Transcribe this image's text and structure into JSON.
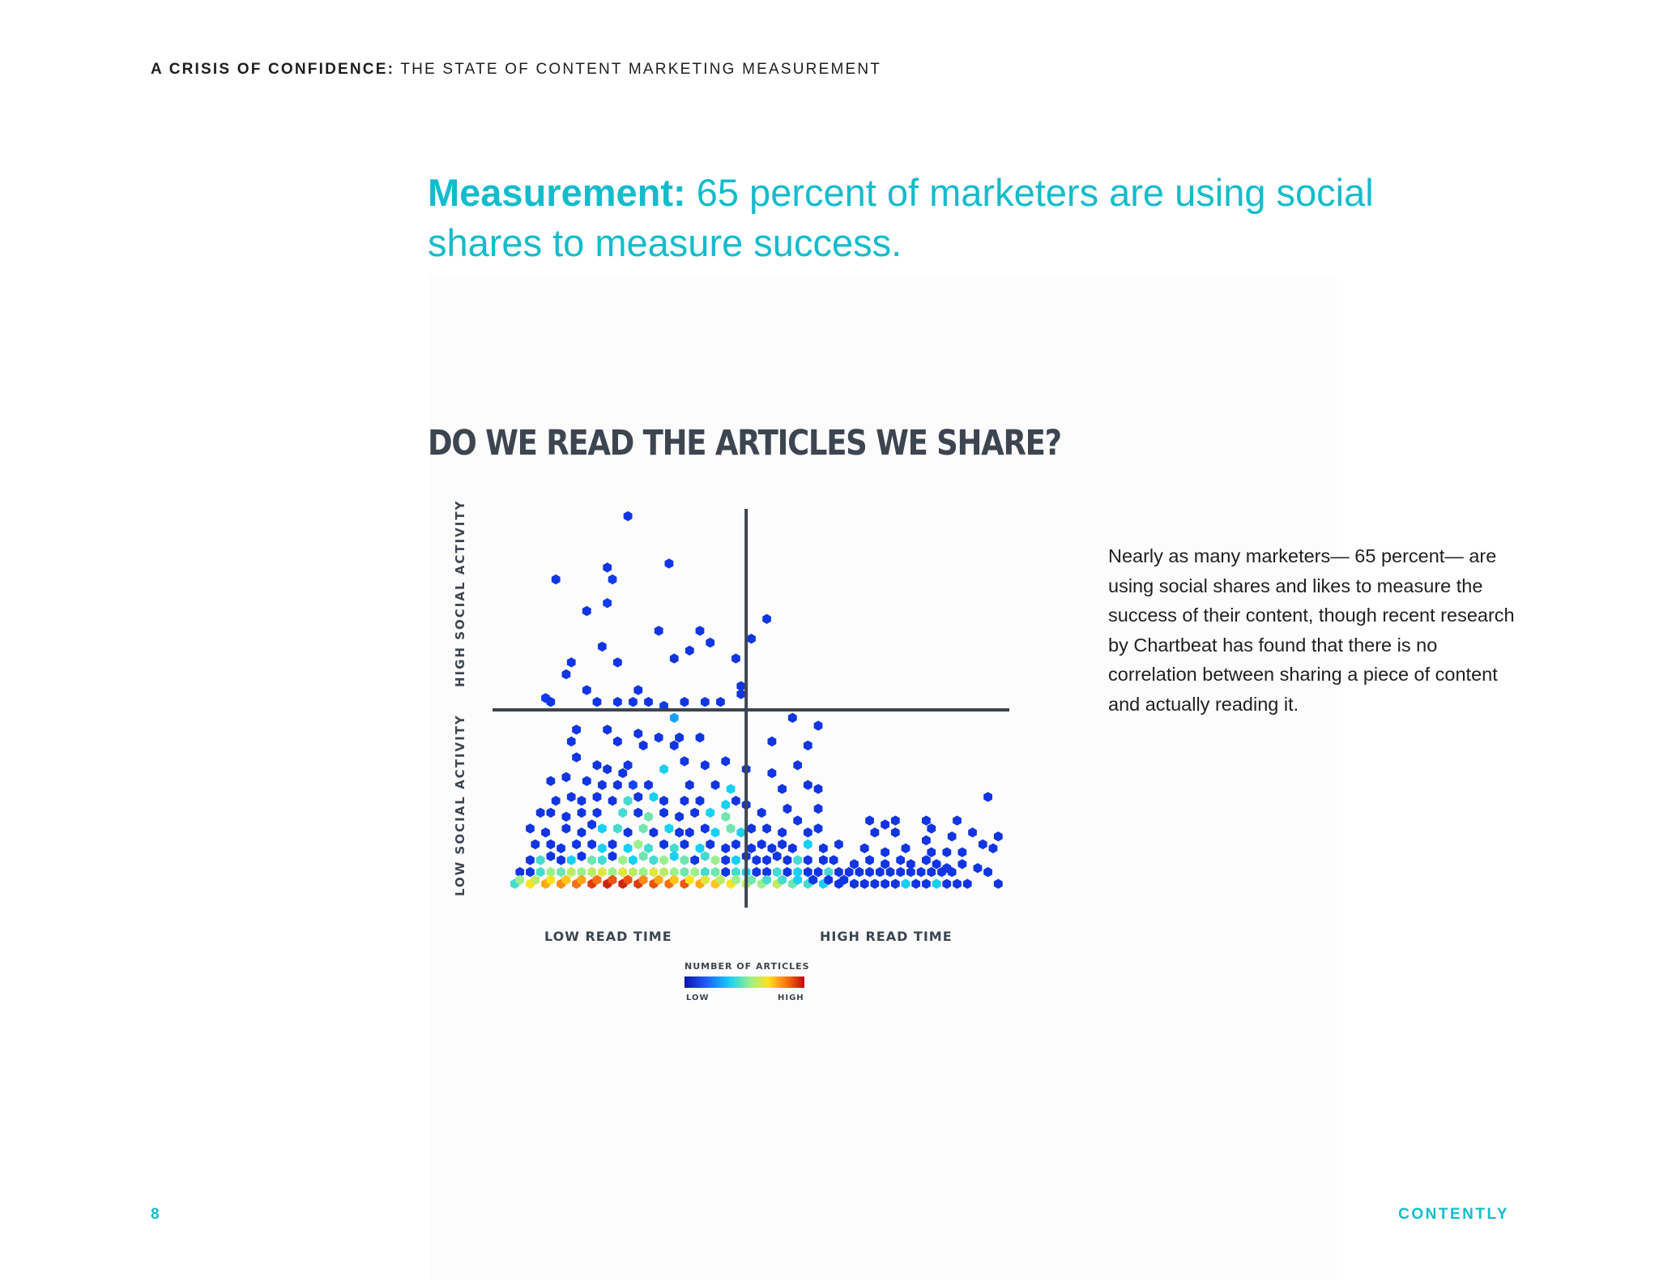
{
  "header": {
    "bold": "A CRISIS OF CONFIDENCE:",
    "rest": "THE STATE OF CONTENT MARKETING MEASUREMENT"
  },
  "headline": {
    "bold": "Measurement:",
    "rest": "65 percent of marketers are using social shares to measure success."
  },
  "body": {
    "paragraph": "Nearly as many marketers— 65 percent— are using social shares and likes to measure the success of their content, though recent research by Chartbeat has found that there is no correlation between sharing a piece of content and actually reading it."
  },
  "footer": {
    "page_number": "8",
    "brand": "CONTENTLY"
  },
  "colors": {
    "accent": "#13bccc",
    "chart_text": "#3d4550",
    "scale_low": "#0a14a8",
    "scale_mid": "#18d0f2",
    "scale_high": "#c10808"
  },
  "chart_data": {
    "type": "scatter",
    "subtype": "hexbin density",
    "title": "DO WE READ THE ARTICLES WE SHARE?",
    "xlabel_low": "LOW READ TIME",
    "xlabel_high": "HIGH READ TIME",
    "ylabel_low": "LOW SOCIAL ACTIVITY",
    "ylabel_high": "HIGH SOCIAL ACTIVITY",
    "xlim": [
      0,
      100
    ],
    "ylim": [
      0,
      100
    ],
    "divider_x": 49,
    "divider_y": 50,
    "grid": false,
    "legend": {
      "title": "NUMBER OF ARTICLES",
      "low": "LOW",
      "high": "HIGH",
      "placement": "bottom-center"
    },
    "density_scale": "0 = low, 1 = high",
    "points": [
      [
        26,
        99,
        0.1
      ],
      [
        12,
        83,
        0.1
      ],
      [
        22,
        86,
        0.1
      ],
      [
        34,
        87,
        0.1
      ],
      [
        23,
        83,
        0.12
      ],
      [
        18,
        75,
        0.1
      ],
      [
        22,
        77,
        0.12
      ],
      [
        32,
        70,
        0.1
      ],
      [
        40,
        70,
        0.1
      ],
      [
        53,
        73,
        0.1
      ],
      [
        50,
        68,
        0.1
      ],
      [
        21,
        66,
        0.1
      ],
      [
        42,
        67,
        0.1
      ],
      [
        15,
        62,
        0.1
      ],
      [
        35,
        63,
        0.1
      ],
      [
        38,
        65,
        0.1
      ],
      [
        14,
        59,
        0.1
      ],
      [
        24,
        62,
        0.1
      ],
      [
        47,
        63,
        0.1
      ],
      [
        18,
        55,
        0.1
      ],
      [
        28,
        55,
        0.1
      ],
      [
        48,
        56,
        0.1
      ],
      [
        10,
        53,
        0.12
      ],
      [
        11,
        52,
        0.1
      ],
      [
        48,
        54,
        0.1
      ],
      [
        20,
        52,
        0.1
      ],
      [
        24,
        52,
        0.1
      ],
      [
        27,
        52,
        0.1
      ],
      [
        30,
        52,
        0.1
      ],
      [
        33,
        51,
        0.12
      ],
      [
        37,
        52,
        0.1
      ],
      [
        41,
        52,
        0.1
      ],
      [
        44,
        52,
        0.1
      ],
      [
        35,
        48,
        0.25
      ],
      [
        58,
        48,
        0.1
      ],
      [
        63,
        46,
        0.1
      ],
      [
        16,
        45,
        0.1
      ],
      [
        22,
        45,
        0.1
      ],
      [
        28,
        44,
        0.1
      ],
      [
        32,
        43,
        0.1
      ],
      [
        36,
        43,
        0.1
      ],
      [
        40,
        43,
        0.1
      ],
      [
        15,
        42,
        0.1
      ],
      [
        24,
        42,
        0.1
      ],
      [
        29,
        41,
        0.1
      ],
      [
        35,
        41,
        0.1
      ],
      [
        54,
        42,
        0.1
      ],
      [
        61,
        41,
        0.1
      ],
      [
        16,
        38,
        0.1
      ],
      [
        20,
        36,
        0.1
      ],
      [
        22,
        35,
        0.1
      ],
      [
        25,
        34,
        0.1
      ],
      [
        26,
        36,
        0.1
      ],
      [
        33,
        35,
        0.3
      ],
      [
        37,
        37,
        0.1
      ],
      [
        41,
        36,
        0.1
      ],
      [
        45,
        37,
        0.1
      ],
      [
        49,
        35,
        0.1
      ],
      [
        54,
        34,
        0.1
      ],
      [
        59,
        36,
        0.1
      ],
      [
        11,
        32,
        0.1
      ],
      [
        14,
        33,
        0.1
      ],
      [
        18,
        32,
        0.1
      ],
      [
        21,
        31,
        0.1
      ],
      [
        24,
        31,
        0.1
      ],
      [
        27,
        31,
        0.15
      ],
      [
        30,
        31,
        0.1
      ],
      [
        38,
        31,
        0.1
      ],
      [
        43,
        31,
        0.1
      ],
      [
        46,
        30,
        0.3
      ],
      [
        56,
        30,
        0.1
      ],
      [
        61,
        31,
        0.1
      ],
      [
        63,
        30,
        0.1
      ],
      [
        96,
        28,
        0.1
      ],
      [
        12,
        27,
        0.1
      ],
      [
        15,
        28,
        0.1
      ],
      [
        17,
        27,
        0.1
      ],
      [
        20,
        28,
        0.1
      ],
      [
        23,
        27,
        0.1
      ],
      [
        26,
        27,
        0.35
      ],
      [
        28,
        28,
        0.1
      ],
      [
        31,
        28,
        0.3
      ],
      [
        33,
        27,
        0.1
      ],
      [
        37,
        27,
        0.1
      ],
      [
        40,
        27,
        0.1
      ],
      [
        45,
        26,
        0.3
      ],
      [
        47,
        27,
        0.1
      ],
      [
        49,
        26,
        0.1
      ],
      [
        57,
        25,
        0.1
      ],
      [
        63,
        25,
        0.1
      ],
      [
        78,
        22,
        0.1
      ],
      [
        84,
        22,
        0.1
      ],
      [
        90,
        22,
        0.1
      ],
      [
        9,
        24,
        0.1
      ],
      [
        11,
        24,
        0.1
      ],
      [
        14,
        23,
        0.1
      ],
      [
        17,
        24,
        0.1
      ],
      [
        20,
        24,
        0.1
      ],
      [
        25,
        24,
        0.35
      ],
      [
        28,
        24,
        0.1
      ],
      [
        30,
        23,
        0.4
      ],
      [
        33,
        24,
        0.1
      ],
      [
        36,
        23,
        0.1
      ],
      [
        39,
        24,
        0.1
      ],
      [
        42,
        24,
        0.3
      ],
      [
        45,
        23,
        0.4
      ],
      [
        52,
        24,
        0.1
      ],
      [
        59,
        22,
        0.1
      ],
      [
        73,
        22,
        0.1
      ],
      [
        76,
        21,
        0.1
      ],
      [
        85,
        20,
        0.1
      ],
      [
        78,
        19,
        0.1
      ],
      [
        7,
        20,
        0.1
      ],
      [
        10,
        19,
        0.1
      ],
      [
        14,
        20,
        0.1
      ],
      [
        17,
        19,
        0.1
      ],
      [
        19,
        21,
        0.1
      ],
      [
        21,
        20,
        0.3
      ],
      [
        24,
        20,
        0.35
      ],
      [
        26,
        19,
        0.1
      ],
      [
        29,
        20,
        0.4
      ],
      [
        31,
        19,
        0.1
      ],
      [
        34,
        20,
        0.3
      ],
      [
        36,
        19,
        0.1
      ],
      [
        38,
        19,
        0.1
      ],
      [
        41,
        20,
        0.1
      ],
      [
        43,
        19,
        0.3
      ],
      [
        46,
        20,
        0.4
      ],
      [
        48,
        19,
        0.3
      ],
      [
        50,
        20,
        0.1
      ],
      [
        53,
        20,
        0.1
      ],
      [
        56,
        19,
        0.1
      ],
      [
        61,
        19,
        0.1
      ],
      [
        63,
        20,
        0.1
      ],
      [
        74,
        19,
        0.1
      ],
      [
        84,
        17,
        0.1
      ],
      [
        89,
        18,
        0.1
      ],
      [
        93,
        19,
        0.1
      ],
      [
        98,
        18,
        0.1
      ],
      [
        8,
        16,
        0.1
      ],
      [
        11,
        16,
        0.1
      ],
      [
        13,
        15,
        0.1
      ],
      [
        16,
        16,
        0.1
      ],
      [
        19,
        16,
        0.1
      ],
      [
        21,
        15,
        0.3
      ],
      [
        23,
        16,
        0.1
      ],
      [
        26,
        15,
        0.3
      ],
      [
        28,
        16,
        0.45
      ],
      [
        30,
        15,
        0.35
      ],
      [
        33,
        16,
        0.1
      ],
      [
        35,
        15,
        0.35
      ],
      [
        37,
        16,
        0.1
      ],
      [
        40,
        15,
        0.3
      ],
      [
        42,
        16,
        0.1
      ],
      [
        45,
        15,
        0.1
      ],
      [
        47,
        16,
        0.1
      ],
      [
        50,
        15,
        0.1
      ],
      [
        52,
        16,
        0.1
      ],
      [
        54,
        15,
        0.1
      ],
      [
        56,
        16,
        0.1
      ],
      [
        58,
        15,
        0.1
      ],
      [
        61,
        16,
        0.3
      ],
      [
        64,
        15,
        0.1
      ],
      [
        67,
        16,
        0.1
      ],
      [
        72,
        15,
        0.1
      ],
      [
        76,
        14,
        0.1
      ],
      [
        80,
        15,
        0.1
      ],
      [
        85,
        14,
        0.1
      ],
      [
        88,
        14,
        0.1
      ],
      [
        91,
        14,
        0.1
      ],
      [
        95,
        16,
        0.1
      ],
      [
        97,
        15,
        0.1
      ],
      [
        7,
        12,
        0.1
      ],
      [
        9,
        12,
        0.35
      ],
      [
        11,
        13,
        0.1
      ],
      [
        13,
        12,
        0.1
      ],
      [
        15,
        12,
        0.3
      ],
      [
        17,
        13,
        0.1
      ],
      [
        19,
        12,
        0.4
      ],
      [
        21,
        12,
        0.35
      ],
      [
        23,
        13,
        0.1
      ],
      [
        25,
        12,
        0.45
      ],
      [
        27,
        12,
        0.3
      ],
      [
        29,
        13,
        0.4
      ],
      [
        31,
        12,
        0.35
      ],
      [
        33,
        12,
        0.45
      ],
      [
        35,
        13,
        0.3
      ],
      [
        37,
        12,
        0.4
      ],
      [
        39,
        12,
        0.1
      ],
      [
        41,
        13,
        0.35
      ],
      [
        43,
        12,
        0.45
      ],
      [
        45,
        12,
        0.1
      ],
      [
        47,
        12,
        0.3
      ],
      [
        49,
        13,
        0.1
      ],
      [
        51,
        12,
        0.1
      ],
      [
        53,
        12,
        0.1
      ],
      [
        55,
        13,
        0.1
      ],
      [
        57,
        12,
        0.1
      ],
      [
        59,
        12,
        0.35
      ],
      [
        61,
        12,
        0.1
      ],
      [
        64,
        12,
        0.1
      ],
      [
        66,
        12,
        0.1
      ],
      [
        70,
        11,
        0.1
      ],
      [
        73,
        12,
        0.1
      ],
      [
        76,
        11,
        0.1
      ],
      [
        79,
        12,
        0.1
      ],
      [
        81,
        11,
        0.1
      ],
      [
        84,
        12,
        0.1
      ],
      [
        86,
        11,
        0.1
      ],
      [
        88,
        10,
        0.1
      ],
      [
        91,
        11,
        0.1
      ],
      [
        94,
        10,
        0.1
      ],
      [
        5,
        9,
        0.1
      ],
      [
        7,
        9,
        0.1
      ],
      [
        9,
        9,
        0.35
      ],
      [
        11,
        9,
        0.45
      ],
      [
        13,
        9,
        0.4
      ],
      [
        15,
        9,
        0.5
      ],
      [
        17,
        9,
        0.45
      ],
      [
        19,
        9,
        0.5
      ],
      [
        21,
        9,
        0.55
      ],
      [
        23,
        9,
        0.45
      ],
      [
        25,
        9,
        0.55
      ],
      [
        27,
        9,
        0.5
      ],
      [
        29,
        9,
        0.45
      ],
      [
        31,
        9,
        0.55
      ],
      [
        33,
        9,
        0.5
      ],
      [
        35,
        9,
        0.45
      ],
      [
        37,
        9,
        0.4
      ],
      [
        39,
        9,
        0.45
      ],
      [
        41,
        9,
        0.35
      ],
      [
        43,
        9,
        0.4
      ],
      [
        45,
        9,
        0.1
      ],
      [
        47,
        9,
        0.35
      ],
      [
        49,
        9,
        0.3
      ],
      [
        51,
        9,
        0.1
      ],
      [
        53,
        9,
        0.1
      ],
      [
        55,
        9,
        0.35
      ],
      [
        57,
        9,
        0.1
      ],
      [
        59,
        9,
        0.3
      ],
      [
        61,
        9,
        0.1
      ],
      [
        63,
        9,
        0.1
      ],
      [
        65,
        9,
        0.35
      ],
      [
        67,
        9,
        0.1
      ],
      [
        69,
        9,
        0.1
      ],
      [
        71,
        9,
        0.1
      ],
      [
        73,
        9,
        0.1
      ],
      [
        75,
        9,
        0.1
      ],
      [
        77,
        9,
        0.1
      ],
      [
        79,
        9,
        0.1
      ],
      [
        81,
        9,
        0.1
      ],
      [
        83,
        9,
        0.1
      ],
      [
        85,
        9,
        0.1
      ],
      [
        87,
        9,
        0.1
      ],
      [
        89,
        9,
        0.1
      ],
      [
        96,
        9,
        0.1
      ],
      [
        4,
        6,
        0.35
      ],
      [
        5,
        7,
        0.45
      ],
      [
        7,
        6,
        0.6
      ],
      [
        8,
        7,
        0.5
      ],
      [
        10,
        6,
        0.7
      ],
      [
        11,
        7,
        0.6
      ],
      [
        13,
        6,
        0.75
      ],
      [
        14,
        7,
        0.65
      ],
      [
        16,
        6,
        0.8
      ],
      [
        17,
        7,
        0.7
      ],
      [
        19,
        6,
        0.9
      ],
      [
        20,
        7,
        0.8
      ],
      [
        22,
        6,
        0.95
      ],
      [
        23,
        7,
        0.85
      ],
      [
        25,
        6,
        0.95
      ],
      [
        26,
        7,
        0.85
      ],
      [
        28,
        6,
        0.9
      ],
      [
        29,
        7,
        0.75
      ],
      [
        31,
        6,
        0.85
      ],
      [
        32,
        7,
        0.7
      ],
      [
        34,
        6,
        0.8
      ],
      [
        35,
        7,
        0.65
      ],
      [
        37,
        6,
        0.85
      ],
      [
        38,
        7,
        0.6
      ],
      [
        40,
        6,
        0.7
      ],
      [
        41,
        7,
        0.55
      ],
      [
        43,
        6,
        0.65
      ],
      [
        44,
        7,
        0.5
      ],
      [
        46,
        6,
        0.6
      ],
      [
        47,
        7,
        0.45
      ],
      [
        49,
        6,
        0.5
      ],
      [
        50,
        7,
        0.4
      ],
      [
        52,
        6,
        0.45
      ],
      [
        53,
        7,
        0.35
      ],
      [
        55,
        6,
        0.5
      ],
      [
        56,
        7,
        0.35
      ],
      [
        58,
        6,
        0.4
      ],
      [
        59,
        7,
        0.3
      ],
      [
        61,
        6,
        0.35
      ],
      [
        62,
        7,
        0.1
      ],
      [
        64,
        6,
        0.3
      ],
      [
        65,
        7,
        0.1
      ],
      [
        67,
        6,
        0.1
      ],
      [
        68,
        7,
        0.1
      ],
      [
        70,
        6,
        0.1
      ],
      [
        72,
        6,
        0.1
      ],
      [
        74,
        6,
        0.1
      ],
      [
        76,
        6,
        0.1
      ],
      [
        78,
        6,
        0.1
      ],
      [
        80,
        6,
        0.3
      ],
      [
        82,
        6,
        0.1
      ],
      [
        84,
        6,
        0.1
      ],
      [
        86,
        6,
        0.3
      ],
      [
        88,
        6,
        0.1
      ],
      [
        90,
        6,
        0.1
      ],
      [
        92,
        6,
        0.1
      ],
      [
        98,
        6,
        0.1
      ]
    ]
  }
}
